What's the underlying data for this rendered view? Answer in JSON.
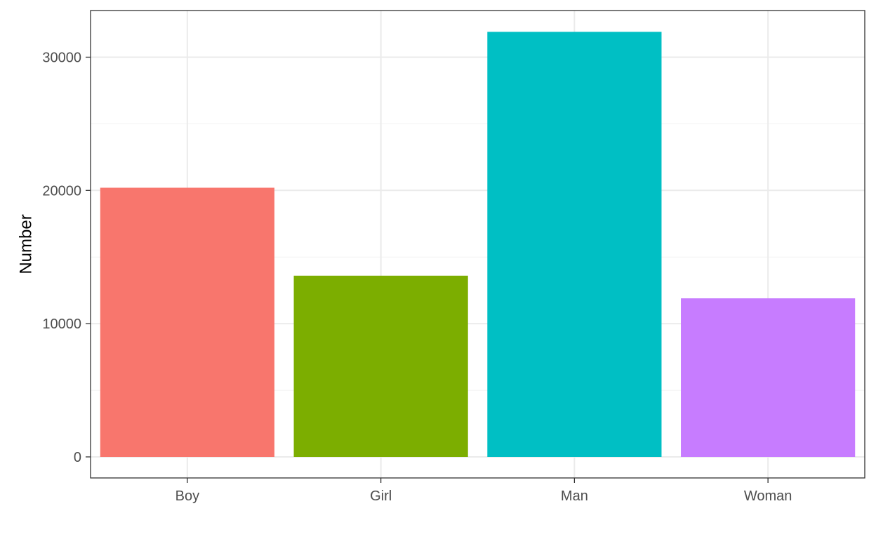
{
  "chart_data": {
    "type": "bar",
    "title": "",
    "xlabel": "",
    "ylabel": "Number",
    "categories": [
      "Boy",
      "Girl",
      "Man",
      "Woman"
    ],
    "values": [
      20200,
      13600,
      31900,
      11900
    ],
    "colors": [
      "#F8766D",
      "#7CAE00",
      "#00BFC4",
      "#C77CFF"
    ],
    "ylim": [
      -1580,
      33500
    ],
    "yticks": [
      0,
      10000,
      20000,
      30000
    ],
    "ytick_labels": [
      "0",
      "10000",
      "20000",
      "30000"
    ],
    "grid": true,
    "legend": "none"
  }
}
